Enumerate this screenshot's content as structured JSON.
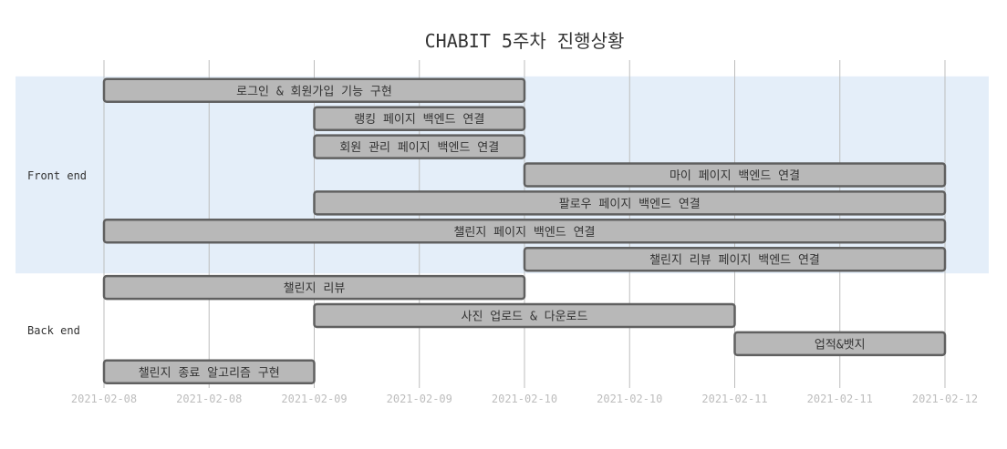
{
  "chart_data": {
    "type": "gantt",
    "title": "CHABIT 5주차 진행상황",
    "x_ticks": [
      "2021-02-08",
      "2021-02-08",
      "2021-02-09",
      "2021-02-09",
      "2021-02-10",
      "2021-02-10",
      "2021-02-11",
      "2021-02-11",
      "2021-02-12"
    ],
    "x_range": [
      0,
      8
    ],
    "grid": true,
    "colors": {
      "bar_fill": "#b8b8b8",
      "bar_stroke": "#606060",
      "band_fill": "#e4eef9",
      "grid": "#bdbdbd",
      "tick_text": "#bdbdbd",
      "label_text": "#333333"
    },
    "groups": [
      {
        "name": "Front end",
        "tasks": [
          {
            "label": "로그인 & 회원가입 기능 구현",
            "start": 0,
            "end": 4
          },
          {
            "label": "랭킹 페이지 백엔드 연결",
            "start": 2,
            "end": 4
          },
          {
            "label": "회원 관리 페이지 백엔드 연결",
            "start": 2,
            "end": 4
          },
          {
            "label": "마이 페이지 백엔드 연결",
            "start": 4,
            "end": 8
          },
          {
            "label": "팔로우 페이지 백엔드 연결",
            "start": 2,
            "end": 8
          },
          {
            "label": "챌린지 페이지 백엔드 연결",
            "start": 0,
            "end": 8
          },
          {
            "label": "챌린지 리뷰 페이지 백엔드 연결",
            "start": 4,
            "end": 8
          }
        ]
      },
      {
        "name": "Back end",
        "tasks": [
          {
            "label": "챌린지 리뷰",
            "start": 0,
            "end": 4
          },
          {
            "label": "사진 업로드 & 다운로드",
            "start": 2,
            "end": 6
          },
          {
            "label": "업적&뱃지",
            "start": 6,
            "end": 8
          },
          {
            "label": "챌린지 종료 알고리즘 구현",
            "start": 0,
            "end": 2
          }
        ]
      }
    ]
  }
}
